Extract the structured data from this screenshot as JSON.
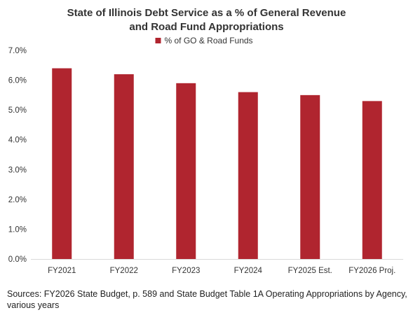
{
  "chart_data": {
    "type": "bar",
    "title_lines": [
      "State of Illinois Debt Service as a % of General Revenue",
      "and Road Fund Appropriations"
    ],
    "categories": [
      "FY2021",
      "FY2022",
      "FY2023",
      "FY2024",
      "FY2025 Est.",
      "FY2026 Proj."
    ],
    "series": [
      {
        "name": "% of GO & Road Funds",
        "color": "#B0252F",
        "values": [
          6.4,
          6.2,
          5.9,
          5.6,
          5.5,
          5.3
        ]
      }
    ],
    "ylim": [
      0,
      7
    ],
    "y_ticks": [
      "0.0%",
      "1.0%",
      "2.0%",
      "3.0%",
      "4.0%",
      "5.0%",
      "6.0%",
      "7.0%"
    ],
    "y_tick_values": [
      0,
      1,
      2,
      3,
      4,
      5,
      6,
      7
    ],
    "grid": false,
    "legend_position": "top-center",
    "xlabel": "",
    "ylabel": ""
  },
  "sources": "Sources: FY2026 State Budget, p. 589 and State Budget Table 1A Operating Appropriations by Agency, various years"
}
